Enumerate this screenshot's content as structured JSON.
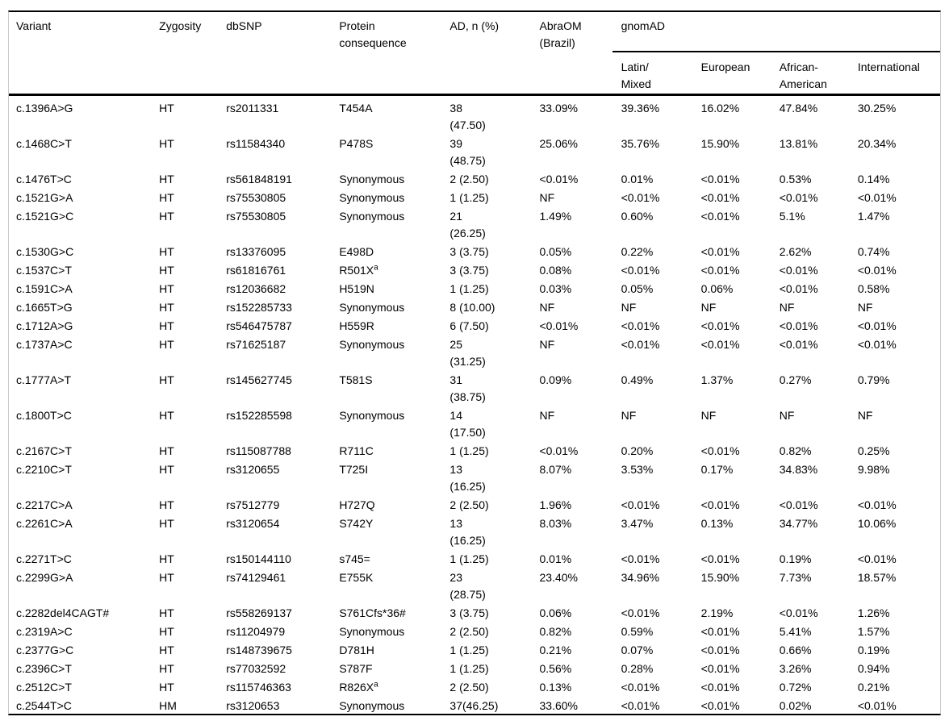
{
  "colors": {
    "background": "#ffffff",
    "text": "#000000",
    "rule": "#000000",
    "frame_border": "#c9c9c9"
  },
  "table": {
    "columns": {
      "variant": "Variant",
      "zygosity": "Zygosity",
      "dbsnp": "dbSNP",
      "protein": "Protein\nconsequence",
      "ad": "AD, n (%)",
      "abraom": "AbraOM\n(Brazil)",
      "gnomad": "gnomAD",
      "latin": "Latin/\nMixed",
      "european": "European",
      "african": "African-\nAmerican",
      "international": "International"
    },
    "rows": [
      {
        "variant": "c.1396A>G",
        "zygosity": "HT",
        "dbsnp": "rs2011331",
        "protein": {
          "text": "T454A",
          "sup": ""
        },
        "ad": "38\n(47.50)",
        "abraom": "33.09%",
        "latin": "39.36%",
        "european": "16.02%",
        "african": "47.84%",
        "international": "30.25%"
      },
      {
        "variant": "c.1468C>T",
        "zygosity": "HT",
        "dbsnp": "rs11584340",
        "protein": {
          "text": "P478S",
          "sup": ""
        },
        "ad": "39\n(48.75)",
        "abraom": "25.06%",
        "latin": "35.76%",
        "european": "15.90%",
        "african": "13.81%",
        "international": "20.34%"
      },
      {
        "variant": "c.1476T>C",
        "zygosity": "HT",
        "dbsnp": "rs561848191",
        "protein": {
          "text": "Synonymous",
          "sup": ""
        },
        "ad": "2 (2.50)",
        "abraom": "<0.01%",
        "latin": "0.01%",
        "european": "<0.01%",
        "african": "0.53%",
        "international": "0.14%"
      },
      {
        "variant": "c.1521G>A",
        "zygosity": "HT",
        "dbsnp": "rs75530805",
        "protein": {
          "text": "Synonymous",
          "sup": ""
        },
        "ad": "1 (1.25)",
        "abraom": "NF",
        "latin": "<0.01%",
        "european": "<0.01%",
        "african": "<0.01%",
        "international": "<0.01%"
      },
      {
        "variant": "c.1521G>C",
        "zygosity": "HT",
        "dbsnp": "rs75530805",
        "protein": {
          "text": "Synonymous",
          "sup": ""
        },
        "ad": "21\n(26.25)",
        "abraom": "1.49%",
        "latin": "0.60%",
        "european": "<0.01%",
        "african": "5.1%",
        "international": "1.47%"
      },
      {
        "variant": "c.1530G>C",
        "zygosity": "HT",
        "dbsnp": "rs13376095",
        "protein": {
          "text": "E498D",
          "sup": ""
        },
        "ad": "3 (3.75)",
        "abraom": "0.05%",
        "latin": "0.22%",
        "european": "<0.01%",
        "african": "2.62%",
        "international": "0.74%"
      },
      {
        "variant": "c.1537C>T",
        "zygosity": "HT",
        "dbsnp": "rs61816761",
        "protein": {
          "text": "R501X",
          "sup": "a"
        },
        "ad": "3 (3.75)",
        "abraom": "0.08%",
        "latin": "<0.01%",
        "european": "<0.01%",
        "african": "<0.01%",
        "international": "<0.01%"
      },
      {
        "variant": "c.1591C>A",
        "zygosity": "HT",
        "dbsnp": "rs12036682",
        "protein": {
          "text": "H519N",
          "sup": ""
        },
        "ad": "1 (1.25)",
        "abraom": "0.03%",
        "latin": "0.05%",
        "european": "0.06%",
        "african": "<0.01%",
        "international": "0.58%"
      },
      {
        "variant": "c.1665T>G",
        "zygosity": "HT",
        "dbsnp": "rs152285733",
        "protein": {
          "text": "Synonymous",
          "sup": ""
        },
        "ad": "8 (10.00)",
        "abraom": "NF",
        "latin": "NF",
        "european": "NF",
        "african": "NF",
        "international": "NF"
      },
      {
        "variant": "c.1712A>G",
        "zygosity": "HT",
        "dbsnp": "rs546475787",
        "protein": {
          "text": "H559R",
          "sup": ""
        },
        "ad": "6 (7.50)",
        "abraom": "<0.01%",
        "latin": "<0.01%",
        "european": "<0.01%",
        "african": "<0.01%",
        "international": "<0.01%"
      },
      {
        "variant": "c.1737A>C",
        "zygosity": "HT",
        "dbsnp": "rs71625187",
        "protein": {
          "text": "Synonymous",
          "sup": ""
        },
        "ad": "25\n(31.25)",
        "abraom": "NF",
        "latin": "<0.01%",
        "european": "<0.01%",
        "african": "<0.01%",
        "international": "<0.01%"
      },
      {
        "variant": "c.1777A>T",
        "zygosity": "HT",
        "dbsnp": "rs145627745",
        "protein": {
          "text": "T581S",
          "sup": ""
        },
        "ad": "31\n(38.75)",
        "abraom": "0.09%",
        "latin": "0.49%",
        "european": "1.37%",
        "african": "0.27%",
        "international": "0.79%"
      },
      {
        "variant": "c.1800T>C",
        "zygosity": "HT",
        "dbsnp": "rs152285598",
        "protein": {
          "text": "Synonymous",
          "sup": ""
        },
        "ad": "14\n(17.50)",
        "abraom": "NF",
        "latin": "NF",
        "european": "NF",
        "african": "NF",
        "international": "NF"
      },
      {
        "variant": "c.2167C>T",
        "zygosity": "HT",
        "dbsnp": "rs115087788",
        "protein": {
          "text": "R711C",
          "sup": ""
        },
        "ad": "1 (1.25)",
        "abraom": "<0.01%",
        "latin": "0.20%",
        "european": "<0.01%",
        "african": "0.82%",
        "international": "0.25%"
      },
      {
        "variant": "c.2210C>T",
        "zygosity": "HT",
        "dbsnp": "rs3120655",
        "protein": {
          "text": "T725I",
          "sup": ""
        },
        "ad": "13\n(16.25)",
        "abraom": "8.07%",
        "latin": "3.53%",
        "european": "0.17%",
        "african": "34.83%",
        "international": "9.98%"
      },
      {
        "variant": "c.2217C>A",
        "zygosity": "HT",
        "dbsnp": "rs7512779",
        "protein": {
          "text": "H727Q",
          "sup": ""
        },
        "ad": "2 (2.50)",
        "abraom": "1.96%",
        "latin": "<0.01%",
        "european": "<0.01%",
        "african": "<0.01%",
        "international": "<0.01%"
      },
      {
        "variant": "c.2261C>A",
        "zygosity": "HT",
        "dbsnp": "rs3120654",
        "protein": {
          "text": "S742Y",
          "sup": ""
        },
        "ad": "13\n(16.25)",
        "abraom": "8.03%",
        "latin": "3.47%",
        "european": "0.13%",
        "african": "34.77%",
        "international": "10.06%"
      },
      {
        "variant": "c.2271T>C",
        "zygosity": "HT",
        "dbsnp": "rs150144110",
        "protein": {
          "text": "s745=",
          "sup": ""
        },
        "ad": "1 (1.25)",
        "abraom": "0.01%",
        "latin": "<0.01%",
        "european": "<0.01%",
        "african": "0.19%",
        "international": "<0.01%"
      },
      {
        "variant": "c.2299G>A",
        "zygosity": "HT",
        "dbsnp": "rs74129461",
        "protein": {
          "text": "E755K",
          "sup": ""
        },
        "ad": "23\n(28.75)",
        "abraom": "23.40%",
        "latin": "34.96%",
        "european": "15.90%",
        "african": "7.73%",
        "international": "18.57%"
      },
      {
        "variant": "c.2282del4CAGT#",
        "zygosity": "HT",
        "dbsnp": "rs558269137",
        "protein": {
          "text": "S761Cfs*36#",
          "sup": ""
        },
        "ad": "3 (3.75)",
        "abraom": "0.06%",
        "latin": "<0.01%",
        "european": "2.19%",
        "african": "<0.01%",
        "international": "1.26%"
      },
      {
        "variant": "c.2319A>C",
        "zygosity": "HT",
        "dbsnp": "rs11204979",
        "protein": {
          "text": "Synonymous",
          "sup": ""
        },
        "ad": "2 (2.50)",
        "abraom": "0.82%",
        "latin": "0.59%",
        "european": "<0.01%",
        "african": "5.41%",
        "international": "1.57%"
      },
      {
        "variant": "c.2377G>C",
        "zygosity": "HT",
        "dbsnp": "rs148739675",
        "protein": {
          "text": "D781H",
          "sup": ""
        },
        "ad": "1 (1.25)",
        "abraom": "0.21%",
        "latin": "0.07%",
        "european": "<0.01%",
        "african": "0.66%",
        "international": "0.19%"
      },
      {
        "variant": "c.2396C>T",
        "zygosity": "HT",
        "dbsnp": "rs77032592",
        "protein": {
          "text": "S787F",
          "sup": ""
        },
        "ad": "1 (1.25)",
        "abraom": "0.56%",
        "latin": "0.28%",
        "european": "<0.01%",
        "african": "3.26%",
        "international": "0.94%"
      },
      {
        "variant": "c.2512C>T",
        "zygosity": "HT",
        "dbsnp": "rs115746363",
        "protein": {
          "text": "R826X",
          "sup": "a"
        },
        "ad": "2 (2.50)",
        "abraom": "0.13%",
        "latin": "<0.01%",
        "european": "<0.01%",
        "african": "0.72%",
        "international": "0.21%"
      },
      {
        "variant": "c.2544T>C",
        "zygosity": "HM",
        "dbsnp": "rs3120653",
        "protein": {
          "text": "Synonymous",
          "sup": ""
        },
        "ad": "37(46.25)",
        "abraom": "33.60%",
        "latin": "<0.01%",
        "european": "<0.01%",
        "african": "0.02%",
        "international": "<0.01%"
      }
    ]
  }
}
